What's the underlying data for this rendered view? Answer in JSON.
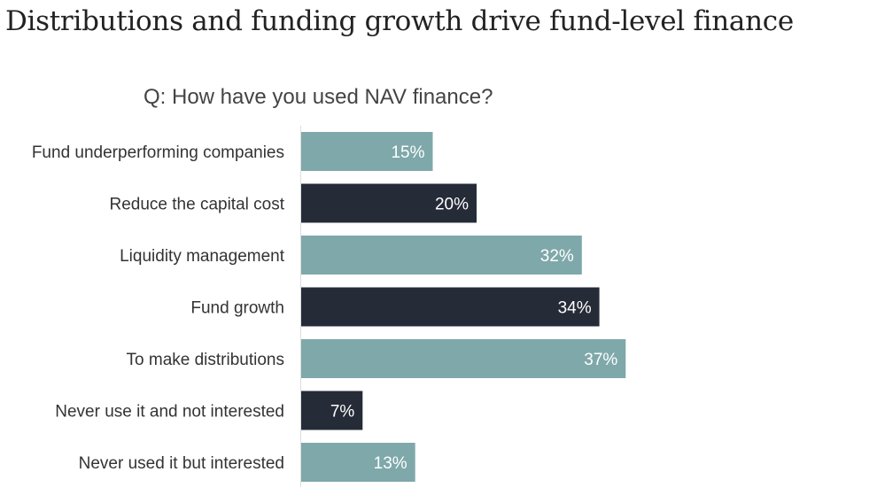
{
  "title": "Distributions and funding growth drive fund-level finance",
  "chart_data": {
    "type": "bar",
    "orientation": "horizontal",
    "title": "Q: How have you used NAV finance?",
    "xlabel": "",
    "ylabel": "",
    "categories": [
      "Fund underperforming companies",
      "Reduce the capital cost",
      "Liquidity management",
      "Fund growth",
      "To make distributions",
      "Never use it and not interested",
      "Never used it but interested"
    ],
    "values": [
      15,
      20,
      32,
      34,
      37,
      7,
      13
    ],
    "labels": [
      "15%",
      "20%",
      "32%",
      "34%",
      "37%",
      "7%",
      "13%"
    ],
    "colors": [
      "#7fa8aa",
      "#252b37",
      "#7fa8aa",
      "#252b37",
      "#7fa8aa",
      "#252b37",
      "#7fa8aa"
    ],
    "xlim": [
      0,
      40
    ],
    "grid": false
  }
}
